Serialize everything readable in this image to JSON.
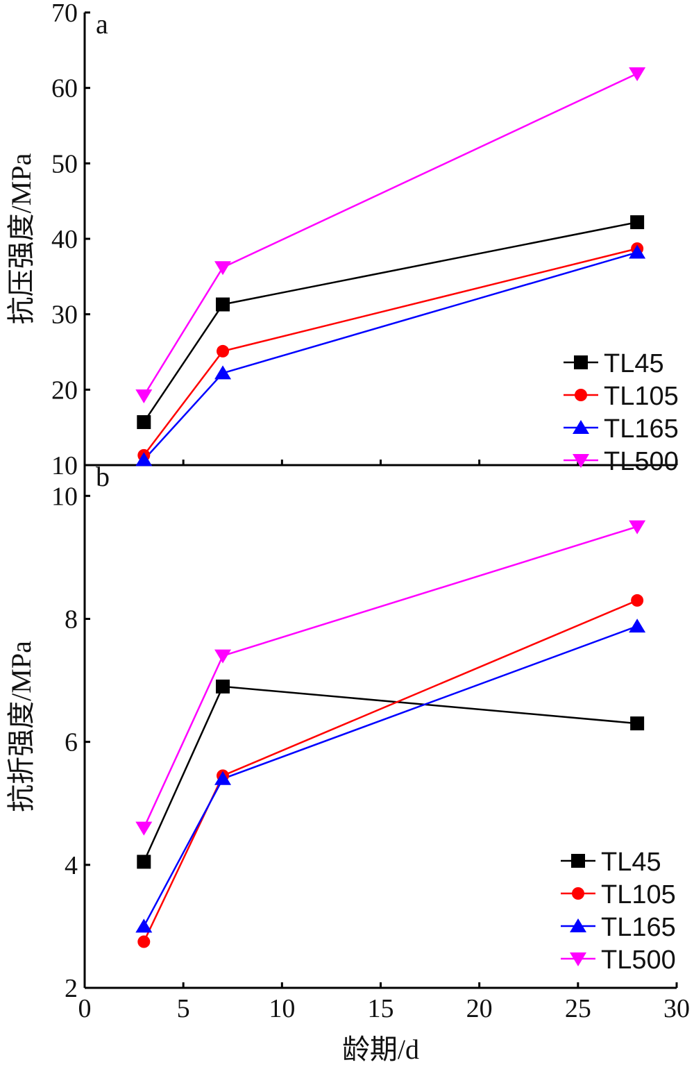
{
  "chart_data": [
    {
      "type": "line",
      "panel_label": "a",
      "ylabel": "抗压强度/MPa",
      "ylim": [
        10,
        70
      ],
      "yticks": [
        10,
        20,
        30,
        40,
        50,
        60,
        70
      ],
      "xlim": [
        0,
        30
      ],
      "x": [
        3,
        7,
        28
      ],
      "legend_position": "bottom-right",
      "series": [
        {
          "name": "TL45",
          "marker": "square",
          "color": "#000000",
          "values": [
            15.7,
            31.3,
            42.2
          ]
        },
        {
          "name": "TL105",
          "marker": "circle",
          "color": "#ff0000",
          "values": [
            11.3,
            25.1,
            38.7
          ]
        },
        {
          "name": "TL165",
          "marker": "triangle-up",
          "color": "#0000ff",
          "values": [
            10.7,
            22.2,
            38.2
          ]
        },
        {
          "name": "TL500",
          "marker": "triangle-down",
          "color": "#ff00ff",
          "values": [
            19.2,
            36.2,
            61.9
          ]
        }
      ]
    },
    {
      "type": "line",
      "panel_label": "b",
      "ylabel": "抗折强度/MPa",
      "xlabel": "龄期/d",
      "ylim": [
        2,
        10.5
      ],
      "yticks": [
        2,
        4,
        6,
        8,
        10
      ],
      "xlim": [
        0,
        30
      ],
      "xticks": [
        0,
        5,
        10,
        15,
        20,
        25,
        30
      ],
      "x": [
        3,
        7,
        28
      ],
      "legend_position": "bottom-right",
      "series": [
        {
          "name": "TL45",
          "marker": "square",
          "color": "#000000",
          "values": [
            4.05,
            6.9,
            6.3
          ]
        },
        {
          "name": "TL105",
          "marker": "circle",
          "color": "#ff0000",
          "values": [
            2.75,
            5.45,
            8.3
          ]
        },
        {
          "name": "TL165",
          "marker": "triangle-up",
          "color": "#0000ff",
          "values": [
            3.0,
            5.4,
            7.88
          ]
        },
        {
          "name": "TL500",
          "marker": "triangle-down",
          "color": "#ff00ff",
          "values": [
            4.6,
            7.4,
            9.5
          ]
        }
      ]
    }
  ]
}
